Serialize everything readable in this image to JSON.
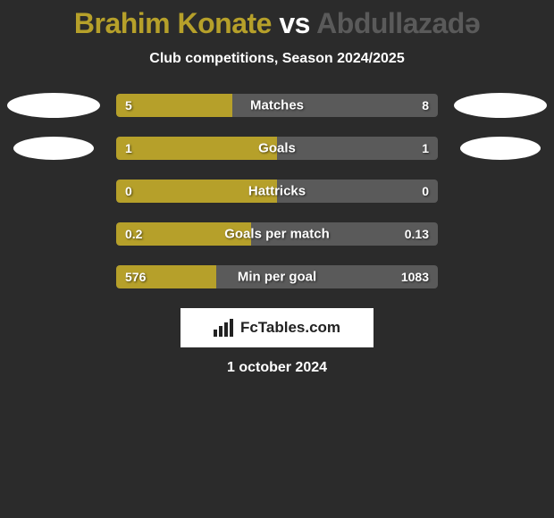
{
  "title": {
    "prefix": "Brahim Konate",
    "vs": " vs ",
    "suffix": "Abdullazadə",
    "prefix_color": "#b6a02a",
    "suffix_color": "#5a5a5a",
    "fontsize": 32
  },
  "subtitle": "Club competitions, Season 2024/2025",
  "left_color": "#b6a02a",
  "right_color": "#5a5a5a",
  "bar_bg": "#5a5a5a",
  "text_color": "#ffffff",
  "background_color": "#2b2b2b",
  "rows": [
    {
      "label": "Matches",
      "left_val": "5",
      "right_val": "8",
      "left_pct": 36,
      "ellipse_left": {
        "w": 104,
        "h": 28
      },
      "ellipse_right": {
        "w": 104,
        "h": 28
      }
    },
    {
      "label": "Goals",
      "left_val": "1",
      "right_val": "1",
      "left_pct": 50,
      "ellipse_left": {
        "w": 90,
        "h": 26
      },
      "ellipse_right": {
        "w": 90,
        "h": 26
      }
    },
    {
      "label": "Hattricks",
      "left_val": "0",
      "right_val": "0",
      "left_pct": 50,
      "ellipse_left": null,
      "ellipse_right": null
    },
    {
      "label": "Goals per match",
      "left_val": "0.2",
      "right_val": "0.13",
      "left_pct": 42,
      "ellipse_left": null,
      "ellipse_right": null
    },
    {
      "label": "Min per goal",
      "left_val": "576",
      "right_val": "1083",
      "left_pct": 31,
      "ellipse_left": null,
      "ellipse_right": null
    }
  ],
  "footer": {
    "logo_text": "FcTables.com",
    "logo_bg": "#ffffff",
    "date": "1 october 2024"
  }
}
